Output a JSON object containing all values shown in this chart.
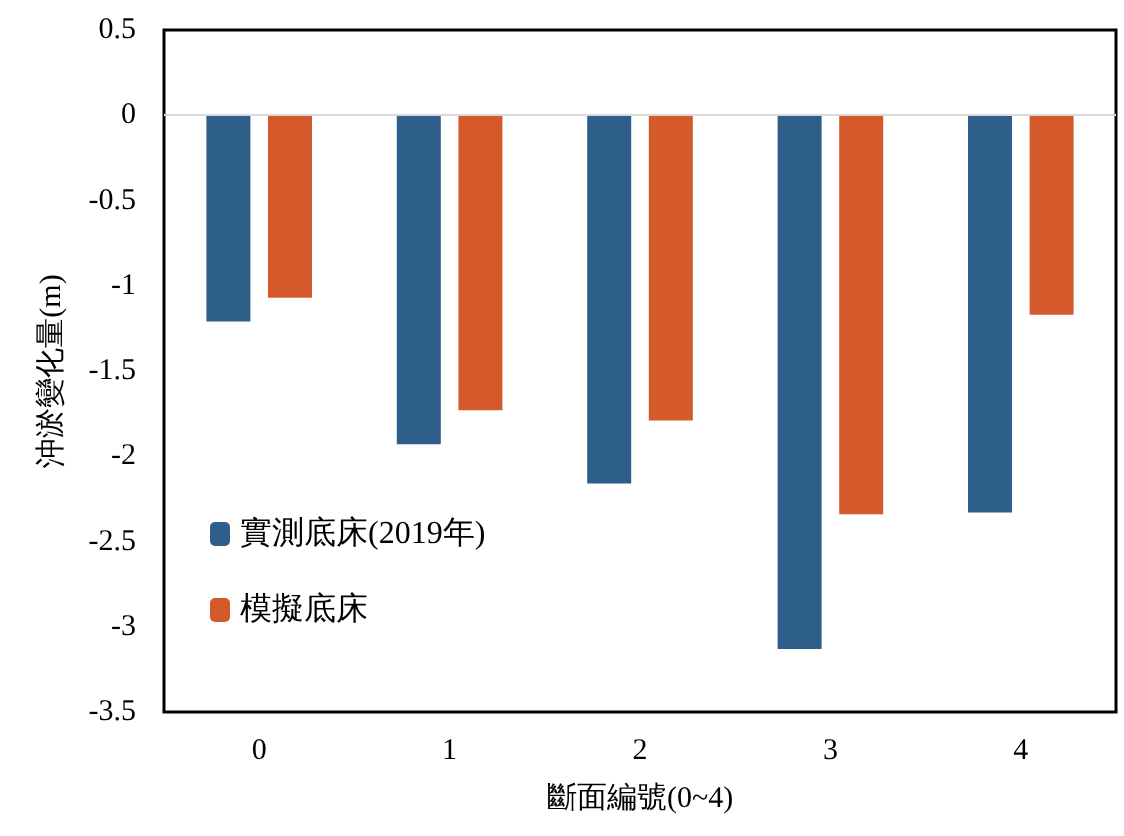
{
  "chart_data": {
    "type": "bar",
    "xlabel": "斷面編號(0~4)",
    "ylabel": "沖淤變化量(m)",
    "categories": [
      "0",
      "1",
      "2",
      "3",
      "4"
    ],
    "series": [
      {
        "name": "實測底床(2019年)",
        "color": "#2e5e8a",
        "values": [
          -1.21,
          -1.93,
          -2.16,
          -3.13,
          -2.33
        ]
      },
      {
        "name": "模擬底床",
        "color": "#d45a2c",
        "values": [
          -1.07,
          -1.73,
          -1.79,
          -2.34,
          -1.17
        ]
      }
    ],
    "ylim": [
      -3.5,
      0.5
    ],
    "yticks": [
      {
        "value": 0.5,
        "label": "0.5"
      },
      {
        "value": 0,
        "label": "0"
      },
      {
        "value": -0.5,
        "label": "-0.5"
      },
      {
        "value": -1,
        "label": "-1"
      },
      {
        "value": -1.5,
        "label": "-1.5"
      },
      {
        "value": -2,
        "label": "-2"
      },
      {
        "value": -2.5,
        "label": "-2.5"
      },
      {
        "value": -3,
        "label": "-3"
      },
      {
        "value": -3.5,
        "label": "-3.5"
      }
    ],
    "ref_lines": [
      {
        "axis": "y",
        "value": 0,
        "color": "#d9d9d9"
      }
    ],
    "grid": false,
    "legend": "bottom left"
  }
}
